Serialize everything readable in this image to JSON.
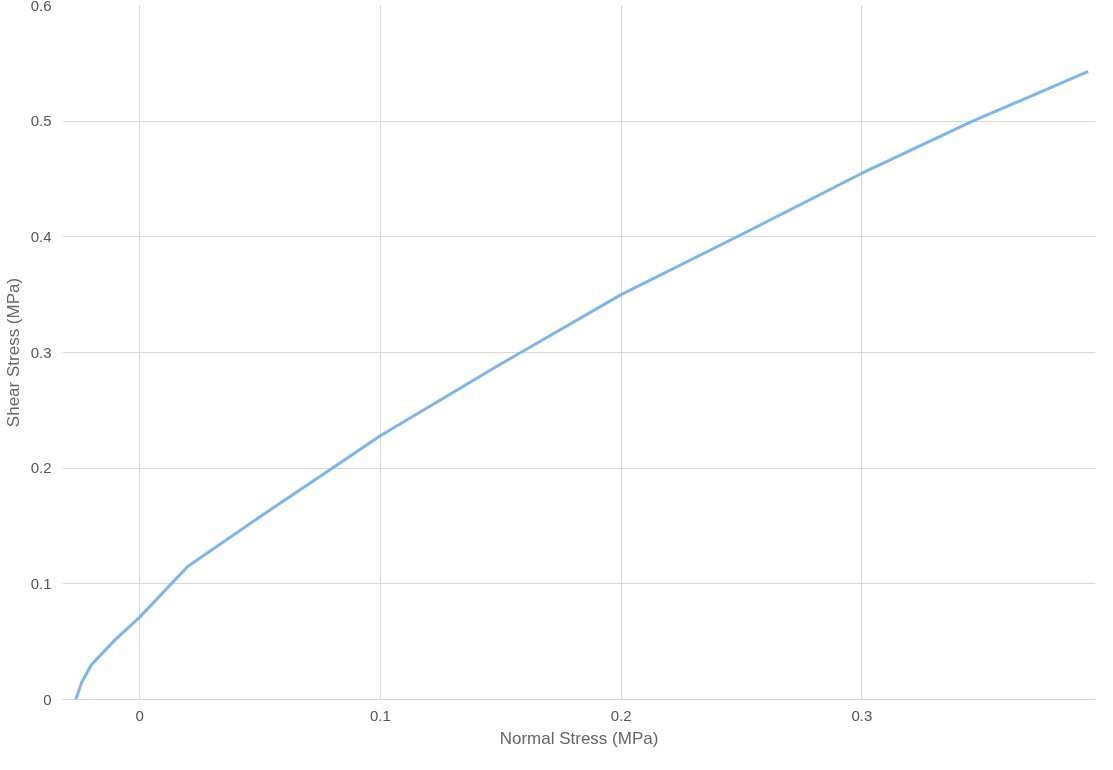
{
  "chart_data": {
    "type": "line",
    "xlabel": "Normal Stress (MPa)",
    "ylabel": "Shear Stress (MPa)",
    "x": [
      -0.0265,
      -0.024,
      -0.02,
      -0.01,
      0,
      0.02,
      0.05,
      0.08,
      0.1,
      0.15,
      0.2,
      0.25,
      0.3,
      0.346,
      0.394
    ],
    "series": [
      {
        "color": "#7cb5ec",
        "values": [
          0,
          0.015,
          0.03,
          0.052,
          0.071,
          0.115,
          0.158,
          0.2,
          0.228,
          0.29,
          0.35,
          0.402,
          0.455,
          0.5,
          0.543
        ]
      }
    ],
    "xlim": [
      -0.032,
      0.397
    ],
    "ylim": [
      0,
      0.6
    ],
    "xticks": [
      0,
      0.1,
      0.2,
      0.3
    ],
    "yticks": [
      0,
      0.1,
      0.2,
      0.3,
      0.4,
      0.5,
      0.6
    ],
    "grid": true,
    "marker": "none",
    "line_style": "solid"
  }
}
